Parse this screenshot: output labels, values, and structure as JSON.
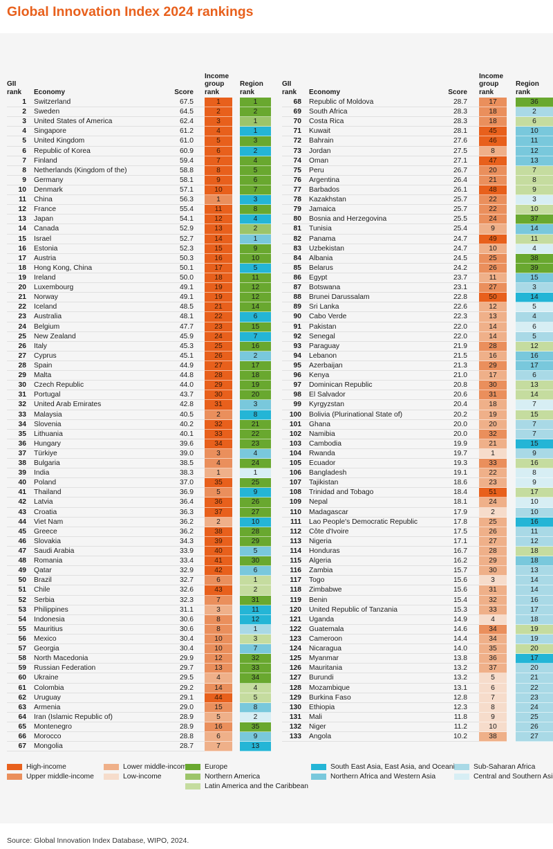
{
  "title": "Global Innovation Index 2024 rankings",
  "headers": {
    "rank": "GII rank",
    "economy": "Economy",
    "score": "Score",
    "income": "Income group rank",
    "region": "Region rank"
  },
  "colors": {
    "H": "#e8601c",
    "UM": "#ea8f5c",
    "LM": "#efb089",
    "L": "#f6dccb",
    "EU": "#69a82f",
    "NA": "#9cc46a",
    "LAC": "#c5dc9f",
    "SEA": "#24b5d6",
    "NAWA": "#79c8dc",
    "SSA": "#a9d9e6",
    "CSA": "#d7eef4"
  },
  "rows": [
    [
      "1",
      "Switzerland",
      "67.5",
      "1",
      "H",
      "1",
      "EU"
    ],
    [
      "2",
      "Sweden",
      "64.5",
      "2",
      "H",
      "2",
      "EU"
    ],
    [
      "3",
      "United States of America",
      "62.4",
      "3",
      "H",
      "1",
      "NA"
    ],
    [
      "4",
      "Singapore",
      "61.2",
      "4",
      "H",
      "1",
      "SEA"
    ],
    [
      "5",
      "United Kingdom",
      "61.0",
      "5",
      "H",
      "3",
      "EU"
    ],
    [
      "6",
      "Republic of Korea",
      "60.9",
      "6",
      "H",
      "2",
      "SEA"
    ],
    [
      "7",
      "Finland",
      "59.4",
      "7",
      "H",
      "4",
      "EU"
    ],
    [
      "8",
      "Netherlands (Kingdom of the)",
      "58.8",
      "8",
      "H",
      "5",
      "EU"
    ],
    [
      "9",
      "Germany",
      "58.1",
      "9",
      "H",
      "6",
      "EU"
    ],
    [
      "10",
      "Denmark",
      "57.1",
      "10",
      "H",
      "7",
      "EU"
    ],
    [
      "11",
      "China",
      "56.3",
      "1",
      "UM",
      "3",
      "SEA"
    ],
    [
      "12",
      "France",
      "55.4",
      "11",
      "H",
      "8",
      "EU"
    ],
    [
      "13",
      "Japan",
      "54.1",
      "12",
      "H",
      "4",
      "SEA"
    ],
    [
      "14",
      "Canada",
      "52.9",
      "13",
      "H",
      "2",
      "NA"
    ],
    [
      "15",
      "Israel",
      "52.7",
      "14",
      "H",
      "1",
      "NAWA"
    ],
    [
      "16",
      "Estonia",
      "52.3",
      "15",
      "H",
      "9",
      "EU"
    ],
    [
      "17",
      "Austria",
      "50.3",
      "16",
      "H",
      "10",
      "EU"
    ],
    [
      "18",
      "Hong Kong, China",
      "50.1",
      "17",
      "H",
      "5",
      "SEA"
    ],
    [
      "19",
      "Ireland",
      "50.0",
      "18",
      "H",
      "11",
      "EU"
    ],
    [
      "20",
      "Luxembourg",
      "49.1",
      "19",
      "H",
      "12",
      "EU"
    ],
    [
      "21",
      "Norway",
      "49.1",
      "19",
      "H",
      "12",
      "EU"
    ],
    [
      "22",
      "Iceland",
      "48.5",
      "21",
      "H",
      "14",
      "EU"
    ],
    [
      "23",
      "Australia",
      "48.1",
      "22",
      "H",
      "6",
      "SEA"
    ],
    [
      "24",
      "Belgium",
      "47.7",
      "23",
      "H",
      "15",
      "EU"
    ],
    [
      "25",
      "New Zealand",
      "45.9",
      "24",
      "H",
      "7",
      "SEA"
    ],
    [
      "26",
      "Italy",
      "45.3",
      "25",
      "H",
      "16",
      "EU"
    ],
    [
      "27",
      "Cyprus",
      "45.1",
      "26",
      "H",
      "2",
      "NAWA"
    ],
    [
      "28",
      "Spain",
      "44.9",
      "27",
      "H",
      "17",
      "EU"
    ],
    [
      "29",
      "Malta",
      "44.8",
      "28",
      "H",
      "18",
      "EU"
    ],
    [
      "30",
      "Czech Republic",
      "44.0",
      "29",
      "H",
      "19",
      "EU"
    ],
    [
      "31",
      "Portugal",
      "43.7",
      "30",
      "H",
      "20",
      "EU"
    ],
    [
      "32",
      "United Arab Emirates",
      "42.8",
      "31",
      "H",
      "3",
      "NAWA"
    ],
    [
      "33",
      "Malaysia",
      "40.5",
      "2",
      "UM",
      "8",
      "SEA"
    ],
    [
      "34",
      "Slovenia",
      "40.2",
      "32",
      "H",
      "21",
      "EU"
    ],
    [
      "35",
      "Lithuania",
      "40.1",
      "33",
      "H",
      "22",
      "EU"
    ],
    [
      "36",
      "Hungary",
      "39.6",
      "34",
      "H",
      "23",
      "EU"
    ],
    [
      "37",
      "Türkiye",
      "39.0",
      "3",
      "UM",
      "4",
      "NAWA"
    ],
    [
      "38",
      "Bulgaria",
      "38.5",
      "4",
      "UM",
      "24",
      "EU"
    ],
    [
      "39",
      "India",
      "38.3",
      "1",
      "LM",
      "1",
      "CSA"
    ],
    [
      "40",
      "Poland",
      "37.0",
      "35",
      "H",
      "25",
      "EU"
    ],
    [
      "41",
      "Thailand",
      "36.9",
      "5",
      "UM",
      "9",
      "SEA"
    ],
    [
      "42",
      "Latvia",
      "36.4",
      "36",
      "H",
      "26",
      "EU"
    ],
    [
      "43",
      "Croatia",
      "36.3",
      "37",
      "H",
      "27",
      "EU"
    ],
    [
      "44",
      "Viet Nam",
      "36.2",
      "2",
      "LM",
      "10",
      "SEA"
    ],
    [
      "45",
      "Greece",
      "36.2",
      "38",
      "H",
      "28",
      "EU"
    ],
    [
      "46",
      "Slovakia",
      "34.3",
      "39",
      "H",
      "29",
      "EU"
    ],
    [
      "47",
      "Saudi Arabia",
      "33.9",
      "40",
      "H",
      "5",
      "NAWA"
    ],
    [
      "48",
      "Romania",
      "33.4",
      "41",
      "H",
      "30",
      "EU"
    ],
    [
      "49",
      "Qatar",
      "32.9",
      "42",
      "H",
      "6",
      "NAWA"
    ],
    [
      "50",
      "Brazil",
      "32.7",
      "6",
      "UM",
      "1",
      "LAC"
    ],
    [
      "51",
      "Chile",
      "32.6",
      "43",
      "H",
      "2",
      "LAC"
    ],
    [
      "52",
      "Serbia",
      "32.3",
      "7",
      "UM",
      "31",
      "EU"
    ],
    [
      "53",
      "Philippines",
      "31.1",
      "3",
      "LM",
      "11",
      "SEA"
    ],
    [
      "54",
      "Indonesia",
      "30.6",
      "8",
      "UM",
      "12",
      "SEA"
    ],
    [
      "55",
      "Mauritius",
      "30.6",
      "8",
      "UM",
      "1",
      "SSA"
    ],
    [
      "56",
      "Mexico",
      "30.4",
      "10",
      "UM",
      "3",
      "LAC"
    ],
    [
      "57",
      "Georgia",
      "30.4",
      "10",
      "UM",
      "7",
      "NAWA"
    ],
    [
      "58",
      "North Macedonia",
      "29.9",
      "12",
      "UM",
      "32",
      "EU"
    ],
    [
      "59",
      "Russian Federation",
      "29.7",
      "13",
      "UM",
      "33",
      "EU"
    ],
    [
      "60",
      "Ukraine",
      "29.5",
      "4",
      "LM",
      "34",
      "EU"
    ],
    [
      "61",
      "Colombia",
      "29.2",
      "14",
      "UM",
      "4",
      "LAC"
    ],
    [
      "62",
      "Uruguay",
      "29.1",
      "44",
      "H",
      "5",
      "LAC"
    ],
    [
      "63",
      "Armenia",
      "29.0",
      "15",
      "UM",
      "8",
      "NAWA"
    ],
    [
      "64",
      "Iran (Islamic Republic of)",
      "28.9",
      "5",
      "LM",
      "2",
      "CSA"
    ],
    [
      "65",
      "Montenegro",
      "28.9",
      "16",
      "UM",
      "35",
      "EU"
    ],
    [
      "66",
      "Morocco",
      "28.8",
      "6",
      "LM",
      "9",
      "NAWA"
    ],
    [
      "67",
      "Mongolia",
      "28.7",
      "7",
      "LM",
      "13",
      "SEA"
    ],
    [
      "68",
      "Republic of Moldova",
      "28.7",
      "17",
      "UM",
      "36",
      "EU"
    ],
    [
      "69",
      "South Africa",
      "28.3",
      "18",
      "UM",
      "2",
      "SSA"
    ],
    [
      "70",
      "Costa Rica",
      "28.3",
      "18",
      "UM",
      "6",
      "LAC"
    ],
    [
      "71",
      "Kuwait",
      "28.1",
      "45",
      "H",
      "10",
      "NAWA"
    ],
    [
      "72",
      "Bahrain",
      "27.6",
      "46",
      "H",
      "11",
      "NAWA"
    ],
    [
      "73",
      "Jordan",
      "27.5",
      "8",
      "LM",
      "12",
      "NAWA"
    ],
    [
      "74",
      "Oman",
      "27.1",
      "47",
      "H",
      "13",
      "NAWA"
    ],
    [
      "75",
      "Peru",
      "26.7",
      "20",
      "UM",
      "7",
      "LAC"
    ],
    [
      "76",
      "Argentina",
      "26.4",
      "21",
      "UM",
      "8",
      "LAC"
    ],
    [
      "77",
      "Barbados",
      "26.1",
      "48",
      "H",
      "9",
      "LAC"
    ],
    [
      "78",
      "Kazakhstan",
      "25.7",
      "22",
      "UM",
      "3",
      "CSA"
    ],
    [
      "79",
      "Jamaica",
      "25.7",
      "22",
      "UM",
      "10",
      "LAC"
    ],
    [
      "80",
      "Bosnia and Herzegovina",
      "25.5",
      "24",
      "UM",
      "37",
      "EU"
    ],
    [
      "81",
      "Tunisia",
      "25.4",
      "9",
      "LM",
      "14",
      "NAWA"
    ],
    [
      "82",
      "Panama",
      "24.7",
      "49",
      "H",
      "11",
      "LAC"
    ],
    [
      "83",
      "Uzbekistan",
      "24.7",
      "10",
      "LM",
      "4",
      "CSA"
    ],
    [
      "84",
      "Albania",
      "24.5",
      "25",
      "UM",
      "38",
      "EU"
    ],
    [
      "85",
      "Belarus",
      "24.2",
      "26",
      "UM",
      "39",
      "EU"
    ],
    [
      "86",
      "Egypt",
      "23.7",
      "11",
      "LM",
      "15",
      "NAWA"
    ],
    [
      "87",
      "Botswana",
      "23.1",
      "27",
      "UM",
      "3",
      "SSA"
    ],
    [
      "88",
      "Brunei Darussalam",
      "22.8",
      "50",
      "H",
      "14",
      "SEA"
    ],
    [
      "89",
      "Sri Lanka",
      "22.6",
      "12",
      "LM",
      "5",
      "CSA"
    ],
    [
      "90",
      "Cabo Verde",
      "22.3",
      "13",
      "LM",
      "4",
      "SSA"
    ],
    [
      "91",
      "Pakistan",
      "22.0",
      "14",
      "LM",
      "6",
      "CSA"
    ],
    [
      "92",
      "Senegal",
      "22.0",
      "14",
      "LM",
      "5",
      "SSA"
    ],
    [
      "93",
      "Paraguay",
      "21.9",
      "28",
      "UM",
      "12",
      "LAC"
    ],
    [
      "94",
      "Lebanon",
      "21.5",
      "16",
      "LM",
      "16",
      "NAWA"
    ],
    [
      "95",
      "Azerbaijan",
      "21.3",
      "29",
      "UM",
      "17",
      "NAWA"
    ],
    [
      "96",
      "Kenya",
      "21.0",
      "17",
      "LM",
      "6",
      "SSA"
    ],
    [
      "97",
      "Dominican Republic",
      "20.8",
      "30",
      "UM",
      "13",
      "LAC"
    ],
    [
      "98",
      "El Salvador",
      "20.6",
      "31",
      "UM",
      "14",
      "LAC"
    ],
    [
      "99",
      "Kyrgyzstan",
      "20.4",
      "18",
      "LM",
      "7",
      "CSA"
    ],
    [
      "100",
      "Bolivia (Plurinational State of)",
      "20.2",
      "19",
      "LM",
      "15",
      "LAC"
    ],
    [
      "101",
      "Ghana",
      "20.0",
      "20",
      "LM",
      "7",
      "SSA"
    ],
    [
      "102",
      "Namibia",
      "20.0",
      "32",
      "UM",
      "7",
      "SSA"
    ],
    [
      "103",
      "Cambodia",
      "19.9",
      "21",
      "LM",
      "15",
      "SEA"
    ],
    [
      "104",
      "Rwanda",
      "19.7",
      "1",
      "L",
      "9",
      "SSA"
    ],
    [
      "105",
      "Ecuador",
      "19.3",
      "33",
      "UM",
      "16",
      "LAC"
    ],
    [
      "106",
      "Bangladesh",
      "19.1",
      "22",
      "LM",
      "8",
      "CSA"
    ],
    [
      "107",
      "Tajikistan",
      "18.6",
      "23",
      "LM",
      "9",
      "CSA"
    ],
    [
      "108",
      "Trinidad and Tobago",
      "18.4",
      "51",
      "H",
      "17",
      "LAC"
    ],
    [
      "109",
      "Nepal",
      "18.1",
      "24",
      "LM",
      "10",
      "CSA"
    ],
    [
      "110",
      "Madagascar",
      "17.9",
      "2",
      "L",
      "10",
      "SSA"
    ],
    [
      "111",
      "Lao People's Democratic Republic",
      "17.8",
      "25",
      "LM",
      "16",
      "SEA"
    ],
    [
      "112",
      "Côte d'Ivoire",
      "17.5",
      "26",
      "LM",
      "11",
      "SSA"
    ],
    [
      "113",
      "Nigeria",
      "17.1",
      "27",
      "LM",
      "12",
      "SSA"
    ],
    [
      "114",
      "Honduras",
      "16.7",
      "28",
      "LM",
      "18",
      "LAC"
    ],
    [
      "115",
      "Algeria",
      "16.2",
      "29",
      "LM",
      "18",
      "NAWA"
    ],
    [
      "116",
      "Zambia",
      "15.7",
      "30",
      "LM",
      "13",
      "SSA"
    ],
    [
      "117",
      "Togo",
      "15.6",
      "3",
      "L",
      "14",
      "SSA"
    ],
    [
      "118",
      "Zimbabwe",
      "15.6",
      "31",
      "LM",
      "14",
      "SSA"
    ],
    [
      "119",
      "Benin",
      "15.4",
      "32",
      "LM",
      "16",
      "SSA"
    ],
    [
      "120",
      "United Republic of Tanzania",
      "15.3",
      "33",
      "LM",
      "17",
      "SSA"
    ],
    [
      "121",
      "Uganda",
      "14.9",
      "4",
      "L",
      "18",
      "SSA"
    ],
    [
      "122",
      "Guatemala",
      "14.6",
      "34",
      "UM",
      "19",
      "LAC"
    ],
    [
      "123",
      "Cameroon",
      "14.4",
      "34",
      "LM",
      "19",
      "SSA"
    ],
    [
      "124",
      "Nicaragua",
      "14.0",
      "35",
      "LM",
      "20",
      "LAC"
    ],
    [
      "125",
      "Myanmar",
      "13.8",
      "36",
      "LM",
      "17",
      "SEA"
    ],
    [
      "126",
      "Mauritania",
      "13.2",
      "37",
      "LM",
      "20",
      "SSA"
    ],
    [
      "127",
      "Burundi",
      "13.2",
      "5",
      "L",
      "21",
      "SSA"
    ],
    [
      "128",
      "Mozambique",
      "13.1",
      "6",
      "L",
      "22",
      "SSA"
    ],
    [
      "129",
      "Burkina Faso",
      "12.8",
      "7",
      "L",
      "23",
      "SSA"
    ],
    [
      "130",
      "Ethiopia",
      "12.3",
      "8",
      "L",
      "24",
      "SSA"
    ],
    [
      "131",
      "Mali",
      "11.8",
      "9",
      "L",
      "25",
      "SSA"
    ],
    [
      "132",
      "Niger",
      "11.2",
      "10",
      "L",
      "26",
      "SSA"
    ],
    [
      "133",
      "Angola",
      "10.2",
      "38",
      "LM",
      "27",
      "SSA"
    ]
  ],
  "legend": [
    {
      "key": "H",
      "label": "High-income"
    },
    {
      "key": "UM",
      "label": "Upper middle-income"
    },
    {
      "key": "LM",
      "label": "Lower middle-income"
    },
    {
      "key": "L",
      "label": "Low-income"
    },
    {
      "key": "EU",
      "label": "Europe"
    },
    {
      "key": "NA",
      "label": "Northern America"
    },
    {
      "key": "LAC",
      "label": "Latin America and the Caribbean"
    },
    {
      "key": "SEA",
      "label": "South East Asia, East Asia, and Oceania"
    },
    {
      "key": "NAWA",
      "label": "Northern Africa and Western Asia"
    },
    {
      "key": "SSA",
      "label": "Sub-Saharan Africa"
    },
    {
      "key": "CSA",
      "label": "Central and Southern Asia"
    }
  ],
  "source": "Source: Global Innovation Index Database, WIPO, 2024."
}
